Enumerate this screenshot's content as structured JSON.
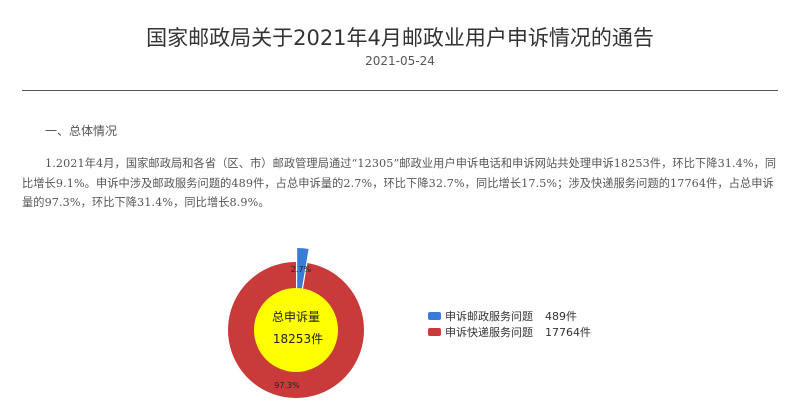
{
  "title": "国家邮政局关于2021年4月邮政业用户申诉情况的通告",
  "date": "2021-05-24",
  "section1": "一、总体情况",
  "paragraph1": "1.2021年4月，国家邮政局和各省（区、市）邮政管理局通过“12305”邮政业用户申诉电话和申诉网站共处理申诉18253件，环比下降31.4%，同比增长9.1%。申诉中涉及邮政服务问题的489件，占总申诉量的2.7%，环比下降32.7%，同比增长17.5%；涉及快递服务问题的17764件，占总申诉量的97.3%，环比下降31.4%，同比增长8.9%。",
  "chart_data": {
    "type": "pie",
    "variant": "donut",
    "center_label": "总申诉量",
    "center_value": "18253件",
    "series": [
      {
        "name": "申诉邮政服务问题",
        "value": 489,
        "value_label": "489件",
        "percent_label": "2.7%",
        "color": "#3a7bd5",
        "exploded": true
      },
      {
        "name": "申诉快递服务问题",
        "value": 17764,
        "value_label": "17764件",
        "percent_label": "97.3%",
        "color": "#c93a3a"
      }
    ],
    "center_color": "#ffff00",
    "legend_position": "right"
  }
}
